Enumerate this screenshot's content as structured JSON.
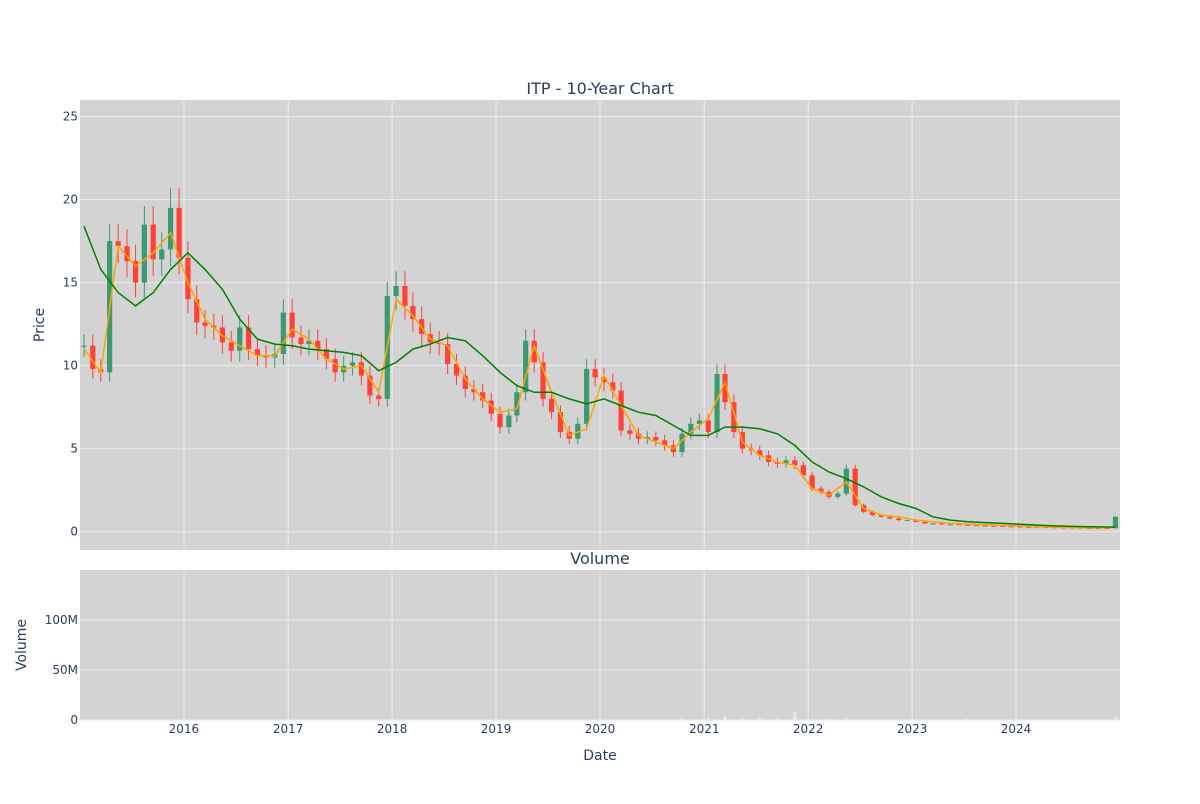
{
  "chart_data": [
    {
      "type": "candlestick",
      "title": "ITP - 10-Year Chart",
      "ylabel": "Price",
      "ylim": [
        -1.1,
        26.0
      ],
      "yticks": [
        0,
        5,
        10,
        15,
        20,
        25
      ],
      "grid": true,
      "legend": "none",
      "colors": {
        "up": "#3d9970",
        "down": "#ff4136",
        "ma_short": "#ffa500",
        "ma_long": "#008000",
        "plot_bg": "#d3d3d3",
        "grid": "#ebebf0"
      },
      "series": [
        {
          "name": "",
          "kind": "close",
          "x": [
            "2015-01",
            "2015-02",
            "2015-03",
            "2015-04",
            "2015-05",
            "2015-06",
            "2015-07",
            "2015-08",
            "2015-09",
            "2015-10",
            "2015-11",
            "2015-12",
            "2016-01",
            "2016-02",
            "2016-03",
            "2016-04",
            "2016-05",
            "2016-06",
            "2016-07",
            "2016-08",
            "2016-09",
            "2016-10",
            "2016-11",
            "2016-12",
            "2017-01",
            "2017-02",
            "2017-03",
            "2017-04",
            "2017-05",
            "2017-06",
            "2017-07",
            "2017-08",
            "2017-09",
            "2017-10",
            "2017-11",
            "2017-12",
            "2018-01",
            "2018-02",
            "2018-03",
            "2018-04",
            "2018-05",
            "2018-06",
            "2018-07",
            "2018-08",
            "2018-09",
            "2018-10",
            "2018-11",
            "2018-12",
            "2019-01",
            "2019-02",
            "2019-03",
            "2019-04",
            "2019-05",
            "2019-06",
            "2019-07",
            "2019-08",
            "2019-09",
            "2019-10",
            "2019-11",
            "2019-12",
            "2020-01",
            "2020-02",
            "2020-03",
            "2020-04",
            "2020-05",
            "2020-06",
            "2020-07",
            "2020-08",
            "2020-09",
            "2020-10",
            "2020-11",
            "2020-12",
            "2021-01",
            "2021-02",
            "2021-03",
            "2021-04",
            "2021-05",
            "2021-06",
            "2021-07",
            "2021-08",
            "2021-09",
            "2021-10",
            "2021-11",
            "2021-12",
            "2022-01",
            "2022-02",
            "2022-03",
            "2022-04",
            "2022-05",
            "2022-06",
            "2022-07",
            "2022-08",
            "2022-09",
            "2022-10",
            "2022-11",
            "2022-12",
            "2023-01",
            "2023-02",
            "2023-03",
            "2023-04",
            "2023-05",
            "2023-06",
            "2023-07",
            "2023-08",
            "2023-09",
            "2023-10",
            "2023-11",
            "2023-12",
            "2024-01",
            "2024-02",
            "2024-03",
            "2024-04",
            "2024-05",
            "2024-06",
            "2024-07",
            "2024-08",
            "2024-09",
            "2024-10",
            "2024-11",
            "2024-12"
          ],
          "values": [
            11.2,
            9.8,
            9.6,
            17.5,
            17.2,
            16.3,
            15.0,
            18.5,
            16.4,
            17.0,
            19.5,
            16.5,
            14.0,
            12.6,
            12.4,
            12.3,
            11.4,
            10.9,
            12.3,
            11.0,
            10.6,
            10.5,
            10.7,
            13.2,
            11.7,
            11.3,
            11.5,
            11.0,
            10.4,
            9.6,
            10.0,
            10.2,
            9.4,
            8.2,
            8.0,
            14.2,
            14.8,
            13.6,
            12.8,
            11.9,
            11.4,
            11.3,
            10.1,
            9.4,
            8.6,
            8.4,
            7.9,
            7.1,
            6.3,
            7.0,
            8.4,
            11.5,
            10.2,
            8.0,
            7.2,
            6.0,
            5.6,
            6.5,
            9.8,
            9.3,
            9.0,
            8.5,
            6.1,
            5.9,
            5.6,
            5.7,
            5.5,
            5.2,
            4.8,
            5.9,
            6.5,
            6.7,
            6.0,
            9.5,
            7.8,
            6.0,
            5.0,
            4.9,
            4.6,
            4.2,
            4.1,
            4.3,
            4.0,
            3.4,
            2.6,
            2.4,
            2.1,
            2.3,
            3.8,
            1.6,
            1.2,
            1.0,
            0.9,
            0.8,
            0.7,
            0.7,
            0.6,
            0.5,
            0.5,
            0.45,
            0.45,
            0.42,
            0.4,
            0.38,
            0.36,
            0.35,
            0.33,
            0.32,
            0.3,
            0.3,
            0.28,
            0.27,
            0.26,
            0.25,
            0.24,
            0.23,
            0.22,
            0.22,
            0.21,
            0.9
          ]
        },
        {
          "name": "",
          "kind": "moving-average-short",
          "x": [
            "2015-01",
            "2015-03",
            "2015-05",
            "2015-07",
            "2015-09",
            "2015-11",
            "2016-01",
            "2016-03",
            "2016-05",
            "2016-07",
            "2016-09",
            "2016-11",
            "2017-01",
            "2017-03",
            "2017-05",
            "2017-07",
            "2017-09",
            "2017-11",
            "2018-01",
            "2018-03",
            "2018-05",
            "2018-07",
            "2018-09",
            "2018-11",
            "2019-01",
            "2019-03",
            "2019-05",
            "2019-07",
            "2019-09",
            "2019-11",
            "2020-01",
            "2020-03",
            "2020-05",
            "2020-07",
            "2020-09",
            "2020-11",
            "2021-01",
            "2021-03",
            "2021-05",
            "2021-07",
            "2021-09",
            "2021-11",
            "2022-01",
            "2022-03",
            "2022-05",
            "2022-07",
            "2022-09",
            "2022-11",
            "2023-01",
            "2023-03",
            "2023-05",
            "2023-07",
            "2023-09",
            "2023-11",
            "2024-01",
            "2024-03",
            "2024-05",
            "2024-07",
            "2024-09",
            "2024-12"
          ],
          "values": [
            11.0,
            9.6,
            17.2,
            16.0,
            16.8,
            18.0,
            15.0,
            12.8,
            11.8,
            11.2,
            10.6,
            10.6,
            12.2,
            11.6,
            10.4,
            9.8,
            10.0,
            8.4,
            14.0,
            13.0,
            11.6,
            11.2,
            9.2,
            8.0,
            7.2,
            7.4,
            11.2,
            8.4,
            5.8,
            6.2,
            9.4,
            7.6,
            5.8,
            5.4,
            5.0,
            6.0,
            6.8,
            9.0,
            5.4,
            4.6,
            4.2,
            4.0,
            2.6,
            2.2,
            3.0,
            1.4,
            1.0,
            0.9,
            0.7,
            0.6,
            0.5,
            0.45,
            0.42,
            0.38,
            0.35,
            0.3,
            0.28,
            0.25,
            0.23,
            0.25
          ]
        },
        {
          "name": "",
          "kind": "moving-average-long",
          "x": [
            "2015-01",
            "2015-03",
            "2015-05",
            "2015-07",
            "2015-09",
            "2015-11",
            "2016-01",
            "2016-03",
            "2016-05",
            "2016-07",
            "2016-09",
            "2016-11",
            "2017-01",
            "2017-03",
            "2017-05",
            "2017-07",
            "2017-09",
            "2017-11",
            "2018-01",
            "2018-03",
            "2018-05",
            "2018-07",
            "2018-09",
            "2018-11",
            "2019-01",
            "2019-03",
            "2019-05",
            "2019-07",
            "2019-09",
            "2019-11",
            "2020-01",
            "2020-03",
            "2020-05",
            "2020-07",
            "2020-09",
            "2020-11",
            "2021-01",
            "2021-03",
            "2021-05",
            "2021-07",
            "2021-09",
            "2021-11",
            "2022-01",
            "2022-03",
            "2022-05",
            "2022-07",
            "2022-09",
            "2022-11",
            "2023-01",
            "2023-03",
            "2023-05",
            "2023-07",
            "2023-09",
            "2023-11",
            "2024-01",
            "2024-03",
            "2024-05",
            "2024-07",
            "2024-09",
            "2024-12"
          ],
          "values": [
            18.4,
            15.8,
            14.4,
            13.6,
            14.4,
            15.8,
            16.8,
            15.8,
            14.6,
            12.8,
            11.6,
            11.3,
            11.2,
            11.0,
            10.9,
            10.8,
            10.6,
            9.7,
            10.2,
            11.0,
            11.3,
            11.7,
            11.5,
            10.6,
            9.6,
            8.8,
            8.4,
            8.4,
            8.0,
            7.7,
            8.0,
            7.6,
            7.2,
            7.0,
            6.4,
            5.8,
            5.8,
            6.3,
            6.3,
            6.2,
            5.9,
            5.2,
            4.2,
            3.6,
            3.2,
            2.7,
            2.1,
            1.7,
            1.4,
            0.9,
            0.7,
            0.6,
            0.55,
            0.5,
            0.45,
            0.4,
            0.35,
            0.32,
            0.3,
            0.28
          ]
        }
      ]
    },
    {
      "type": "bar",
      "title": "Volume",
      "xlabel": "Date",
      "ylabel": "Volume",
      "ylim": [
        0,
        150000000
      ],
      "yticks": [
        0,
        50000000,
        100000000
      ],
      "ytick_labels": [
        "0",
        "50M",
        "100M"
      ],
      "x_tick_labels": [
        "2016",
        "2017",
        "2018",
        "2019",
        "2020",
        "2021",
        "2022",
        "2023",
        "2024"
      ],
      "grid": true,
      "colors": {
        "bar": "#e8e8f0",
        "plot_bg": "#d3d3d3",
        "grid": "#ebebf0"
      },
      "series": [
        {
          "name": "",
          "x": [
            "2015-01",
            "2015-07",
            "2016-01",
            "2016-07",
            "2017-01",
            "2017-07",
            "2018-01",
            "2018-07",
            "2019-01",
            "2019-07",
            "2020-01",
            "2020-07",
            "2020-10",
            "2021-01",
            "2021-03",
            "2021-05",
            "2021-07",
            "2021-09",
            "2021-11",
            "2022-01",
            "2022-03",
            "2022-05",
            "2022-07",
            "2023-01",
            "2023-07",
            "2024-01",
            "2024-07",
            "2024-12"
          ],
          "values": [
            0,
            0,
            0,
            0,
            0,
            0,
            0,
            0,
            0,
            0,
            0,
            200000,
            1500000,
            2500000,
            4000000,
            1500000,
            2000000,
            1500000,
            8000000,
            1000000,
            1500000,
            2500000,
            1000000,
            1000000,
            1500000,
            1000000,
            1200000,
            3000000
          ]
        }
      ]
    }
  ]
}
